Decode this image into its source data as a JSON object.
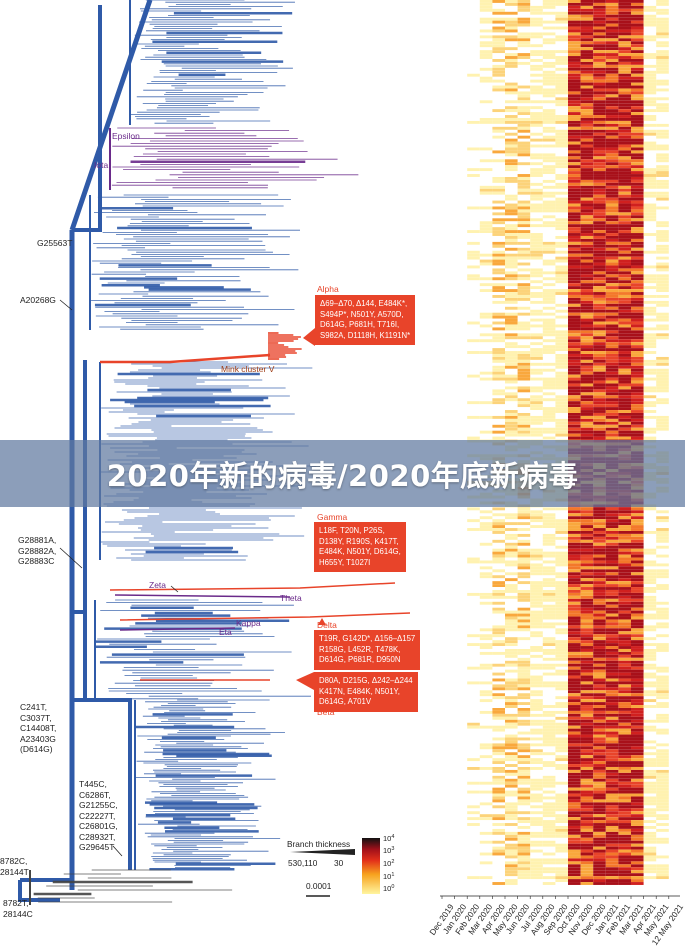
{
  "banner": {
    "title": "2020年新的病毒/2020年底新病毒"
  },
  "mutation_labels": {
    "g25563t": "G25563T",
    "a20268g": "A20268G",
    "g28881": [
      "G28881A,",
      "G28882A,",
      "G28883C"
    ],
    "c241": [
      "C241T,",
      "C3037T,",
      "C14408T,",
      "A23403G",
      "(D614G)"
    ],
    "t445": [
      "T445C,",
      "C6286T,",
      "G21255C,",
      "C22227T,",
      "C26801G,",
      "C28932T,",
      "G29645T"
    ],
    "c8782_top": [
      "8782C,",
      "28144T"
    ],
    "c8782_bottom": [
      "8782T,",
      "28144C"
    ]
  },
  "variants": {
    "epsilon": "Epsilon",
    "iota": "Iota",
    "mink": "Mink cluster V",
    "zeta": "Zeta",
    "theta": "Theta",
    "kappa": "Kappa",
    "eta": "Eta"
  },
  "callouts": {
    "alpha": {
      "title": "Alpha",
      "lines": [
        "Δ69–Δ70, Δ144, E484K*,",
        "S494P*, N501Y, A570D,",
        "D614G, P681H, T716I,",
        "S982A, D1118H, K1191N*"
      ]
    },
    "gamma": {
      "title": "Gamma",
      "lines": [
        "L18F, T20N, P26S,",
        "D138Y, R190S, K417T,",
        "E484K, N501Y, D614G,",
        "H655Y, T1027I"
      ]
    },
    "delta": {
      "title": "Delta",
      "lines": [
        "T19R, G142D*, Δ156–Δ157",
        "R158G, L452R, T478K,",
        "D614G, P681R, D950N"
      ]
    },
    "beta": {
      "title": "Beta",
      "lines": [
        "D80A, D215G, Δ242–Δ244",
        "K417N, E484K, N501Y,",
        "D614G, A701V"
      ]
    }
  },
  "legend": {
    "branch_title": "Branch thickness",
    "branch_max": "530,110",
    "branch_min": "30",
    "scale_bar": "0.0001",
    "colorbar_ticks": [
      "0",
      "1",
      "2",
      "3",
      "4"
    ],
    "colorbar_base": "10"
  },
  "timeline_months": [
    "Dec 2019",
    "Jan 2020",
    "Feb 2020",
    "Mar 2020",
    "Apr 2020",
    "May 2020",
    "Jun 2020",
    "Jul 2020",
    "Aug 2020",
    "Sep 2020",
    "Oct 2020",
    "Nov 2020",
    "Dec 2020",
    "Jan 2021",
    "Feb 2021",
    "Mar 2021",
    "Apr 2021",
    "May 2021",
    "12 May 2021"
  ],
  "colors": {
    "tree_blue": "#2f5aa8",
    "variant_red": "#e8442a",
    "variant_purple": "#6a2a8a",
    "heat_low": "#fde7b8",
    "heat_high": "#c4101a"
  }
}
